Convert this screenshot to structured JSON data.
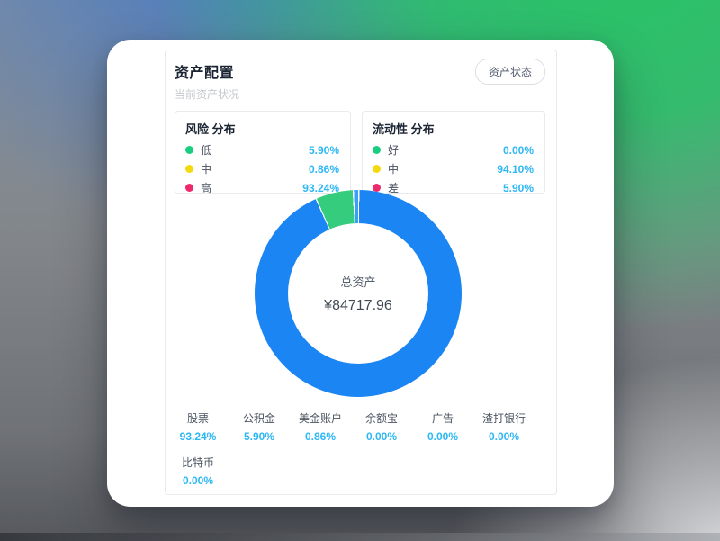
{
  "header": {
    "title": "资产配置",
    "subtitle": "当前资产状况",
    "action_button": "资产状态"
  },
  "panels": [
    {
      "title": "风险 分布",
      "rows": [
        {
          "label": "低",
          "color": "#1ace81",
          "value": "5.90%"
        },
        {
          "label": "中",
          "color": "#f5d90f",
          "value": "0.86%"
        },
        {
          "label": "高",
          "color": "#ee2a6d",
          "value": "93.24%"
        }
      ]
    },
    {
      "title": "流动性 分布",
      "rows": [
        {
          "label": "好",
          "color": "#1ace81",
          "value": "0.00%"
        },
        {
          "label": "中",
          "color": "#f5d90f",
          "value": "94.10%"
        },
        {
          "label": "差",
          "color": "#ee2a6d",
          "value": "5.90%"
        }
      ]
    }
  ],
  "chart_data": {
    "type": "pie",
    "title": "资产配置",
    "center_label": "总资产",
    "center_value": "¥84717.96",
    "donut": true,
    "start_angle_deg": 0,
    "direction": "clockwise",
    "series": [
      {
        "name": "股票",
        "value": 93.24,
        "color": "#1b85f3"
      },
      {
        "name": "公积金",
        "value": 5.9,
        "color": "#35cd7d"
      },
      {
        "name": "美金账户",
        "value": 0.86,
        "color": "#38a1f6"
      },
      {
        "name": "余额宝",
        "value": 0.0,
        "color": "#cccccc"
      },
      {
        "name": "广告",
        "value": 0.0,
        "color": "#cccccc"
      },
      {
        "name": "渣打银行",
        "value": 0.0,
        "color": "#cccccc"
      },
      {
        "name": "比特币",
        "value": 0.0,
        "color": "#cccccc"
      }
    ],
    "legend": [
      {
        "name": "股票",
        "pct": "93.24%"
      },
      {
        "name": "公积金",
        "pct": "5.90%"
      },
      {
        "name": "美金账户",
        "pct": "0.86%"
      },
      {
        "name": "余额宝",
        "pct": "0.00%"
      },
      {
        "name": "广告",
        "pct": "0.00%"
      },
      {
        "name": "渣打银行",
        "pct": "0.00%"
      },
      {
        "name": "比特币",
        "pct": "0.00%"
      }
    ],
    "legend_position": "bottom"
  },
  "colors": {
    "percent_text": "#2db7f5",
    "donut_primary": "#1b85f3",
    "donut_green": "#35cd7d",
    "donut_light_blue": "#38a1f6",
    "panel_border": "#e8eaec"
  }
}
